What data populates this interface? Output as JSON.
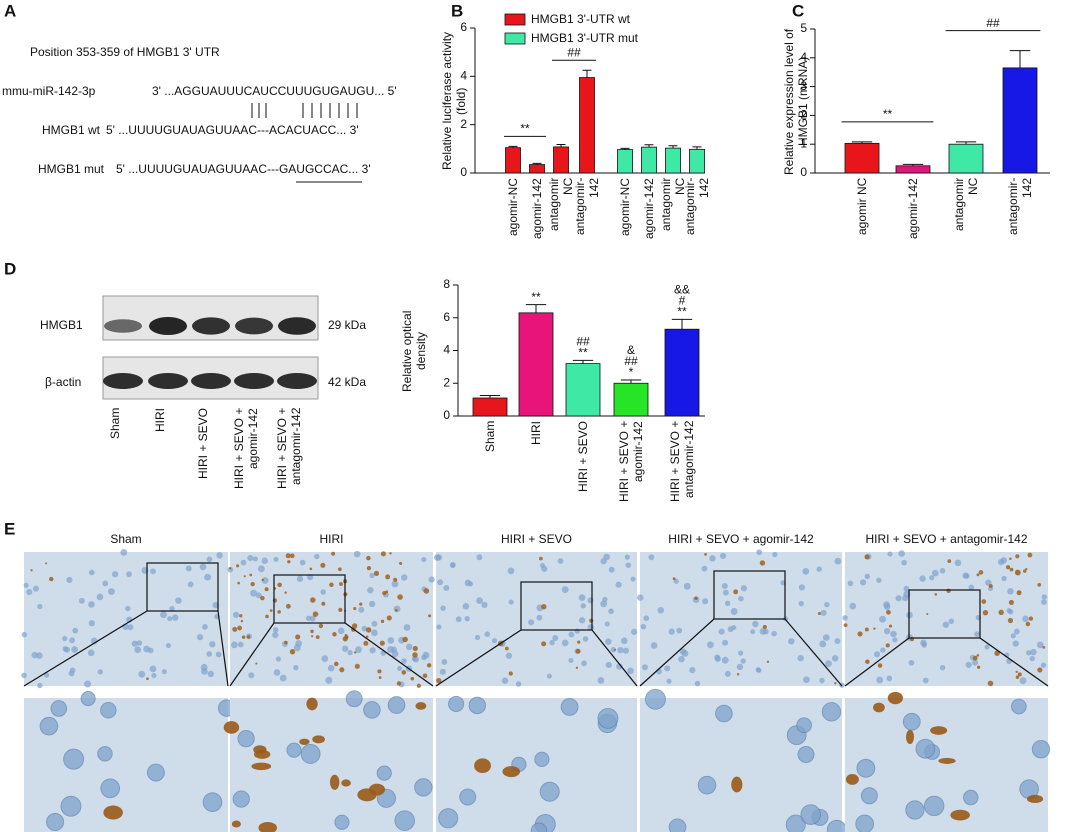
{
  "panels": {
    "labels": [
      "A",
      "B",
      "C",
      "D",
      "E"
    ]
  },
  "sequence": {
    "title": "Position 353-359 of HMGB1 3' UTR",
    "rows": [
      {
        "name": "mmu-miR-142-3p",
        "seq": "3' ...AGGUAUUUCAUCCUUUGUGAUGU... 5'"
      },
      {
        "name": "HMGB1 wt",
        "seq": "5' ...UUUUGUAUAGUUAAC---ACACUACC... 3'"
      },
      {
        "name": "HMGB1 mut",
        "seq": "5' ...UUUUGUAUAGUUAAC---GAUGCCAC... 3'"
      }
    ]
  },
  "western_blot": {
    "bands": [
      {
        "name": "HMGB1",
        "size": "29 kDa"
      },
      {
        "name": "β-actin",
        "size": "42 kDa"
      }
    ],
    "lanes": [
      "Sham",
      "HIRI",
      "HIRI + SEVO",
      "HIRI + SEVO + agomir-142",
      "HIRI + SEVO + antagomir-142"
    ]
  },
  "histology": {
    "groups": [
      "Sham",
      "HIRI",
      "HIRI + SEVO",
      "HIRI + SEVO + agomir-142",
      "HIRI + SEVO + antagomir-142"
    ]
  },
  "chart_data": [
    {
      "type": "bar",
      "ylabel": "Relative luciferase activity (fold)",
      "categories": [
        "agomir-NC",
        "agomir-142",
        "antagomir NC",
        "antagomir-142",
        "agomir-NC",
        "agomir-142",
        "antagomir NC",
        "antagomir-142"
      ],
      "series": [
        {
          "name": "HMGB1 3'-UTR wt",
          "color": "#e8161b",
          "values": [
            1.05,
            0.35,
            1.08,
            3.95,
            null,
            null,
            null,
            null
          ],
          "errors": [
            0.05,
            0.05,
            0.1,
            0.3,
            null,
            null,
            null,
            null
          ]
        },
        {
          "name": "HMGB1 3'-UTR mut",
          "color": "#3fe8a4",
          "values": [
            null,
            null,
            null,
            null,
            0.97,
            1.07,
            1.03,
            0.98
          ],
          "errors": [
            null,
            null,
            null,
            null,
            0.05,
            0.1,
            0.1,
            0.1
          ]
        }
      ],
      "ylim": [
        0,
        6
      ],
      "yticks": [
        0,
        2,
        4,
        6
      ],
      "annotations": [
        "**",
        "##"
      ]
    },
    {
      "type": "bar",
      "ylabel": "Relative expression level of HMGB1 (mRNA)",
      "categories": [
        "agomir NC",
        "agomir-142",
        "antagomir NC",
        "antagomir-142"
      ],
      "values": [
        1.03,
        0.25,
        1.0,
        3.65
      ],
      "errors": [
        0.05,
        0.05,
        0.08,
        0.6
      ],
      "colors": [
        "#e8161b",
        "#e0147a",
        "#3fe8a4",
        "#1818e6"
      ],
      "ylim": [
        0,
        5
      ],
      "yticks": [
        0,
        1,
        2,
        3,
        4,
        5
      ],
      "annotations": [
        "**",
        "##"
      ]
    },
    {
      "type": "bar",
      "ylabel": "Relative optical density",
      "categories": [
        "Sham",
        "HIRI",
        "HIRI + SEVO",
        "HIRI + SEVO + agomir-142",
        "HIRI + SEVO + antagomir-142"
      ],
      "values": [
        1.1,
        6.3,
        3.2,
        2.0,
        5.3
      ],
      "errors": [
        0.15,
        0.5,
        0.2,
        0.2,
        0.6
      ],
      "colors": [
        "#e8161b",
        "#e8147a",
        "#3fe8a4",
        "#27e427",
        "#1818e6"
      ],
      "ylim": [
        0,
        8
      ],
      "yticks": [
        0,
        2,
        4,
        6,
        8
      ],
      "bar_annotations": [
        null,
        [
          "**"
        ],
        [
          "##",
          "**"
        ],
        [
          "&",
          "##",
          "*"
        ],
        [
          "&&",
          "#",
          "**"
        ]
      ]
    }
  ]
}
